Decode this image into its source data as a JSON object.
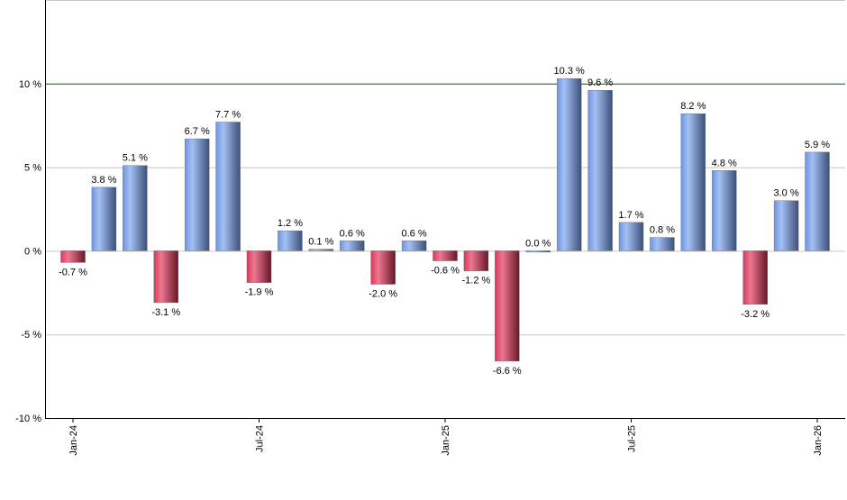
{
  "chart_data": {
    "type": "bar",
    "title": "",
    "xlabel": "",
    "ylabel": "",
    "ylim": [
      -10,
      15
    ],
    "yticks": [
      -10,
      -5,
      0,
      5,
      10
    ],
    "ytick_suffix": " %",
    "grid": true,
    "highlight_line": {
      "value": 10,
      "color": "#006400"
    },
    "colors": {
      "positive": "#7b9fe0",
      "negative": "#c8304f",
      "grid": "#c8c8c8"
    },
    "x_tick_labels": [
      {
        "index": 0,
        "label": "Jan-24"
      },
      {
        "index": 6,
        "label": "Jul-24"
      },
      {
        "index": 12,
        "label": "Jan-25"
      },
      {
        "index": 18,
        "label": "Jul-25"
      },
      {
        "index": 24,
        "label": "Jan-26"
      }
    ],
    "values": [
      -0.7,
      3.8,
      5.1,
      -3.1,
      6.7,
      7.7,
      -1.9,
      1.2,
      0.1,
      0.6,
      -2.0,
      0.6,
      -0.6,
      -1.2,
      -6.6,
      0.0,
      10.3,
      9.6,
      1.7,
      0.8,
      8.2,
      4.8,
      -3.2,
      3.0,
      5.9
    ],
    "data_labels": [
      "-0.7 %",
      "3.8 %",
      "5.1 %",
      "-3.1 %",
      "6.7 %",
      "7.7 %",
      "-1.9 %",
      "1.2 %",
      "0.1 %",
      "0.6 %",
      "-2.0 %",
      "0.6 %",
      "-0.6 %",
      "-1.2 %",
      "-6.6 %",
      "0.0 %",
      "10.3 %",
      "9.6 %",
      "1.7 %",
      "0.8 %",
      "8.2 %",
      "4.8 %",
      "-3.2 %",
      "3.0 %",
      "5.9 %"
    ]
  }
}
